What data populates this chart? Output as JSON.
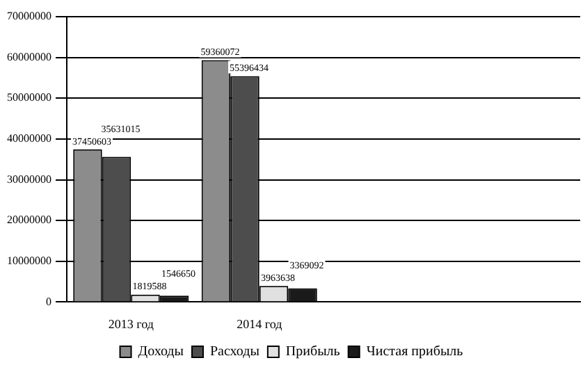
{
  "chart_data": {
    "type": "bar",
    "categories": [
      "2013 год",
      "2014 год",
      null,
      null
    ],
    "series": [
      {
        "name": "Доходы",
        "color": "#8c8c8c",
        "values": [
          37450603,
          59360072,
          null,
          null
        ]
      },
      {
        "name": "Расходы",
        "color": "#4d4d4d",
        "values": [
          35631015,
          55396434,
          null,
          null
        ]
      },
      {
        "name": "Прибыль",
        "color": "#e0e0e0",
        "values": [
          1819588,
          3963638,
          null,
          null
        ]
      },
      {
        "name": "Чистая прибыль",
        "color": "#1a1a1a",
        "values": [
          1546650,
          3369092,
          null,
          null
        ]
      }
    ],
    "ylim": [
      0,
      70000000
    ],
    "yticks": [
      0,
      10000000,
      20000000,
      30000000,
      40000000,
      50000000,
      60000000,
      70000000
    ],
    "grid": "y",
    "legend": "bottom",
    "data_labels": true
  }
}
